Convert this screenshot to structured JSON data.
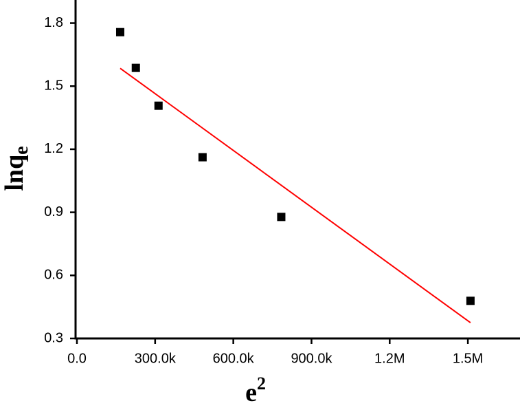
{
  "chart_data": {
    "type": "scatter",
    "x_label": "e",
    "x_label_sup": "2",
    "y_label": "lnq",
    "y_label_sub": "e",
    "series": [
      {
        "x": [
          166000,
          226000,
          313000,
          482000,
          784000,
          1510000
        ],
        "values": [
          1.757,
          1.587,
          1.407,
          1.162,
          0.878,
          0.479
        ],
        "color": "#000000"
      },
      {
        "type": "line",
        "x": [
          166000,
          1510000
        ],
        "values": [
          1.585,
          0.375
        ],
        "color": "#ff0000"
      }
    ],
    "xlim": [
      0,
      1700000
    ],
    "xticks": [
      {
        "value": 0,
        "label": "0.0"
      },
      {
        "value": 300000,
        "label": "300.0k"
      },
      {
        "value": 600000,
        "label": "600.0k"
      },
      {
        "value": 900000,
        "label": "900.0k"
      },
      {
        "value": 1200000,
        "label": "1.2M"
      },
      {
        "value": 1500000,
        "label": "1.5M"
      }
    ],
    "ylim": [
      0.3,
      1.9
    ],
    "yticks": [
      0.3,
      0.6,
      0.9,
      1.2,
      1.5,
      1.8
    ],
    "grid": false
  }
}
